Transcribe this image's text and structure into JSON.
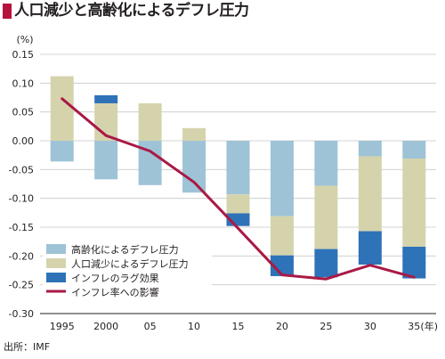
{
  "title": "人口減少と高齢化によるデフレ圧力",
  "source": "出所：IMF",
  "chart_data": {
    "type": "bar",
    "stacked": true,
    "ylabel": "(%)",
    "xunit": "(年)",
    "ylim": [
      -0.3,
      0.15
    ],
    "yticks": [
      "0.15",
      "0.10",
      "0.05",
      "0.00",
      "-0.05",
      "-0.10",
      "-0.15",
      "-0.20",
      "-0.25",
      "-0.30"
    ],
    "categories": [
      "1995",
      "2000",
      "05",
      "10",
      "15",
      "20",
      "25",
      "30",
      "35"
    ],
    "grid": true,
    "legend_position": "bottom-left",
    "series": [
      {
        "name": "高齢化によるデフレ圧力",
        "type": "bar",
        "color": "#9ec3d6",
        "values": [
          -0.036,
          -0.067,
          -0.077,
          -0.09,
          -0.093,
          -0.131,
          -0.078,
          -0.027,
          -0.031
        ]
      },
      {
        "name": "人口減少によるデフレ圧力",
        "type": "bar",
        "color": "#d5d3ac",
        "values": [
          0.112,
          0.065,
          0.065,
          0.022,
          -0.033,
          -0.068,
          -0.11,
          -0.13,
          -0.153
        ]
      },
      {
        "name": "インフレのラグ効果",
        "type": "bar",
        "color": "#2e72b8",
        "values": [
          0.0,
          0.014,
          0.0,
          0.0,
          -0.022,
          -0.036,
          -0.049,
          -0.058,
          -0.055
        ]
      },
      {
        "name": "インフレ率への影響",
        "type": "line",
        "color": "#aa1945",
        "values": [
          0.073,
          0.009,
          -0.018,
          -0.072,
          -0.152,
          -0.233,
          -0.24,
          -0.216,
          -0.237
        ]
      }
    ]
  }
}
